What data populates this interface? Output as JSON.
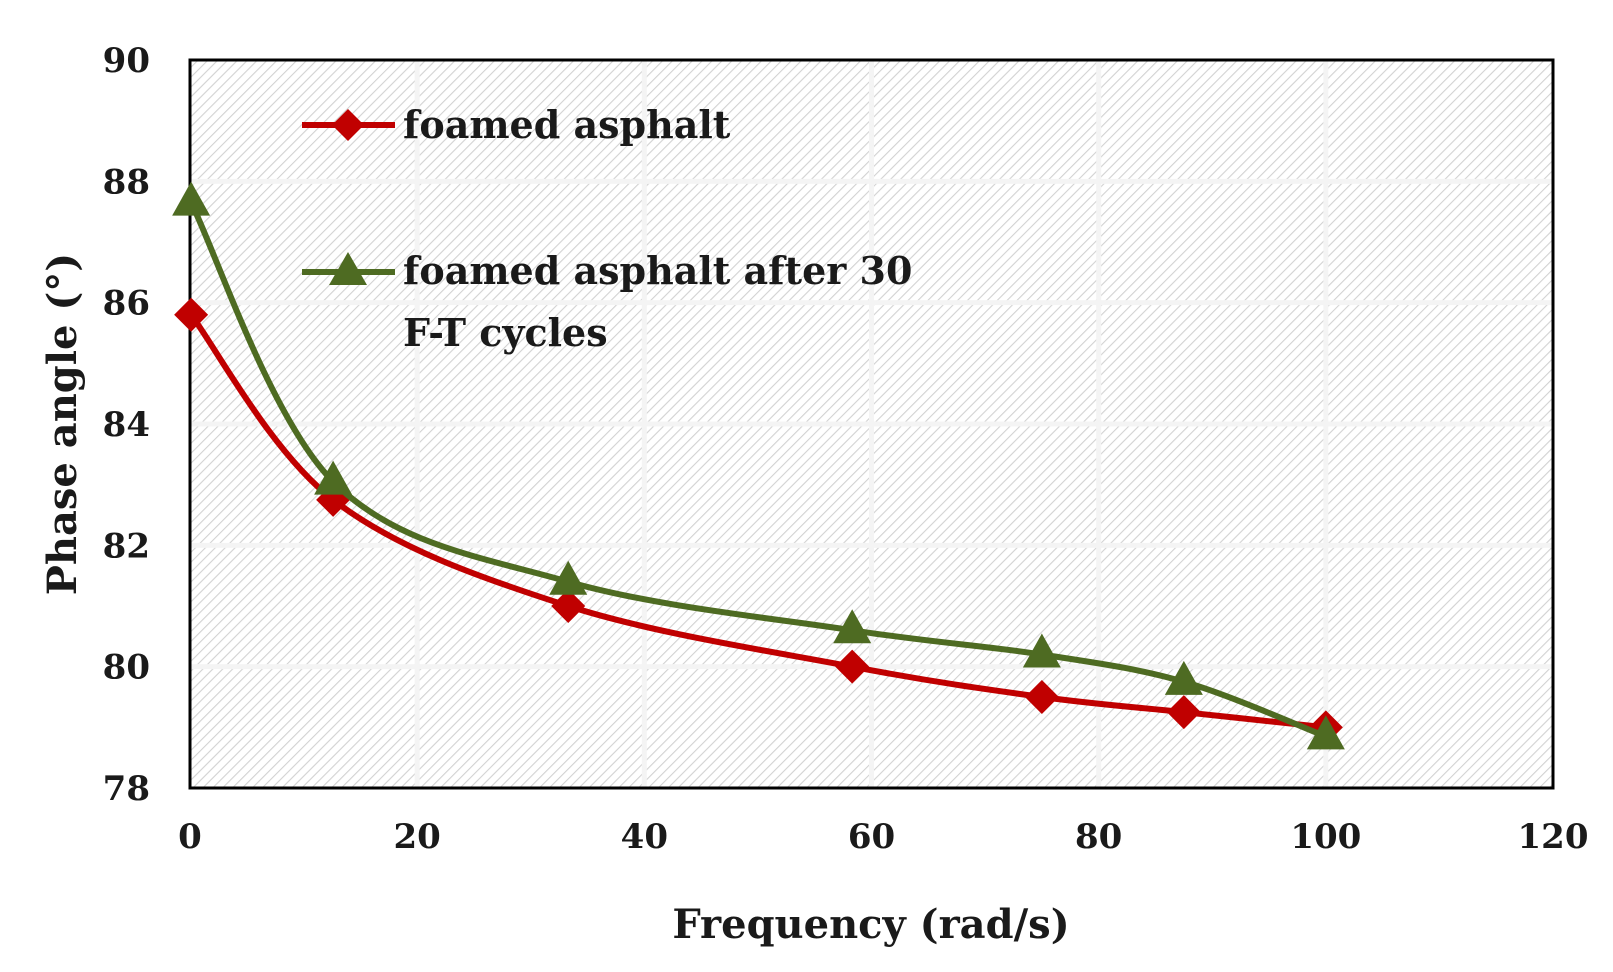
{
  "chart_data": {
    "type": "line",
    "title": "",
    "xlabel": "Frequency (rad/s)",
    "ylabel": "Phase angle (°)",
    "xlim": [
      0,
      120
    ],
    "ylim": [
      78,
      90
    ],
    "xticks": [
      0,
      20,
      40,
      60,
      80,
      100,
      120
    ],
    "yticks": [
      78,
      80,
      82,
      84,
      86,
      88,
      90
    ],
    "xtick_labels": [
      "0",
      "20",
      "40",
      "60",
      "80",
      "100",
      "120"
    ],
    "ytick_labels": [
      "78",
      "80",
      "82",
      "84",
      "86",
      "88",
      "90"
    ],
    "grid": true,
    "legend_position": "top-left",
    "series": [
      {
        "name": "foamed asphalt",
        "legend_lines": [
          "foamed asphalt"
        ],
        "color": "#c00000",
        "marker": "diamond",
        "x": [
          0.1,
          12.6,
          33.3,
          58.3,
          75.0,
          87.5,
          100.0
        ],
        "y": [
          85.8,
          82.75,
          81.0,
          80.0,
          79.5,
          79.25,
          79.0
        ]
      },
      {
        "name": "foamed asphalt after 30 F-T cycles",
        "legend_lines": [
          "foamed asphalt after 30",
          "F-T cycles"
        ],
        "color": "#4e6b22",
        "marker": "triangle",
        "x": [
          0.1,
          12.6,
          33.3,
          58.3,
          75.0,
          87.5,
          100.0
        ],
        "y": [
          87.65,
          83.05,
          81.4,
          80.6,
          80.2,
          79.75,
          78.85
        ]
      }
    ]
  }
}
